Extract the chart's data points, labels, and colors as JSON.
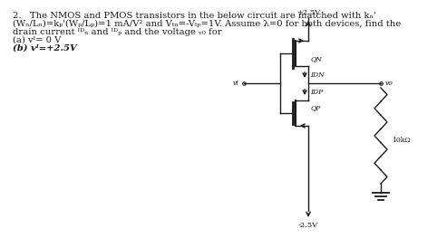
{
  "title_line1": "2.   The NMOS and PMOS transistors in the below circuit are matched with kₙ'",
  "title_line2": "(Wₙ/Lₙ)=kₚ'(Wₚ/Lₚ)=1 mA/V² and Vₜₙ=-Vₜₚ=1V. Assume λ=0 for both devices, find the",
  "title_line3": "drain current iDN and iDP and the voltage vo for",
  "item_a": "(a) vi= 0 V",
  "item_b": "(b) vi=+2.5V",
  "vdd_label": "+2.5V",
  "vss_label": "-2.5V",
  "vo_label": "vo",
  "vi_label": "vi",
  "qn_label": "QN",
  "qp_label": "QP",
  "idn_label": "IDN",
  "idp_label": "IDP",
  "resistor_label": "10kΩ",
  "bg_color": "#ffffff",
  "text_color": "#000000",
  "line_color": "#1a1a1a",
  "font_size_body": 7.2,
  "font_size_labels": 6.0,
  "font_size_circuit": 5.5
}
